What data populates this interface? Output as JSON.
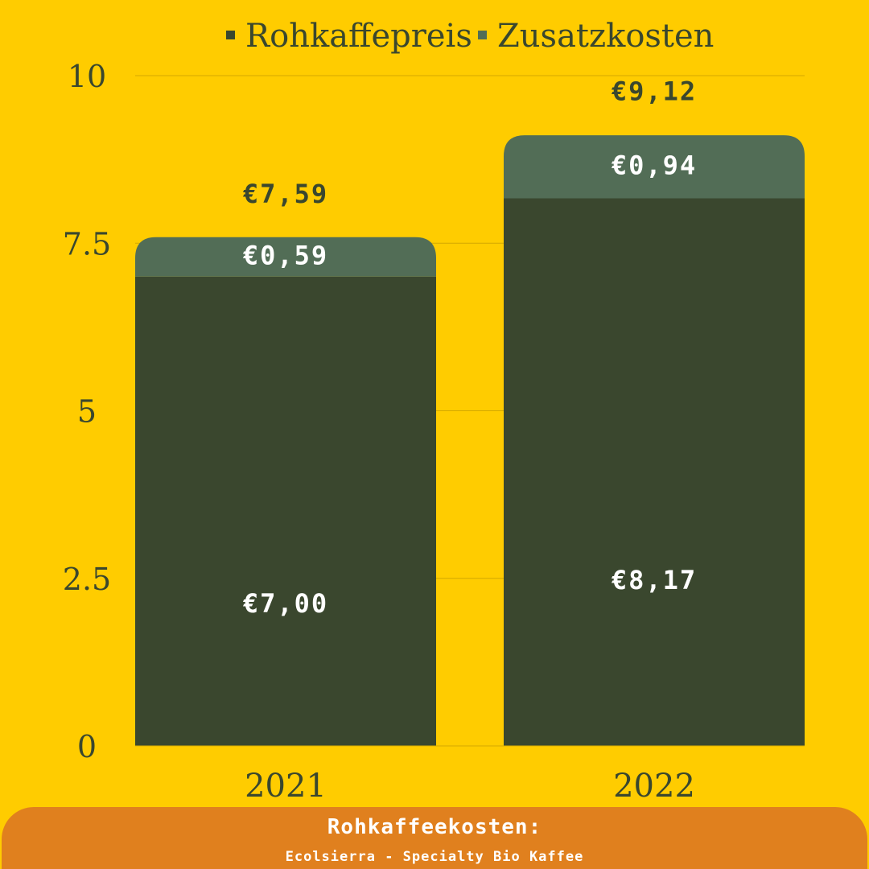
{
  "chart_data": {
    "type": "bar",
    "stacked": true,
    "categories": [
      "2021",
      "2022"
    ],
    "series": [
      {
        "name": "Rohkaffepreis",
        "values": [
          7.0,
          8.17
        ],
        "labels": [
          "€7,00",
          "€8,17"
        ],
        "color": "#3A472E"
      },
      {
        "name": "Zusatzkosten",
        "values": [
          0.59,
          0.94
        ],
        "labels": [
          "€0,59",
          "€0,94"
        ],
        "color": "#526D56"
      }
    ],
    "totals": [
      7.59,
      9.12
    ],
    "total_labels": [
      "€7,59",
      "€9,12"
    ],
    "yticks": [
      0,
      2.5,
      5,
      7.5,
      10
    ],
    "ytick_labels": [
      "0",
      "2.5",
      "5",
      "7.5",
      "10"
    ],
    "ylim": [
      0,
      10
    ],
    "grid": true,
    "legend_position": "top-center",
    "title": "",
    "xlabel": "",
    "ylabel": ""
  },
  "footer": {
    "title": "Rohkaffeekosten:",
    "subtitle": "Ecolsierra - Specialty Bio Kaffee"
  },
  "colors": {
    "background": "#FFCC00",
    "footer": "#E0801E",
    "text": "#3A472E"
  }
}
